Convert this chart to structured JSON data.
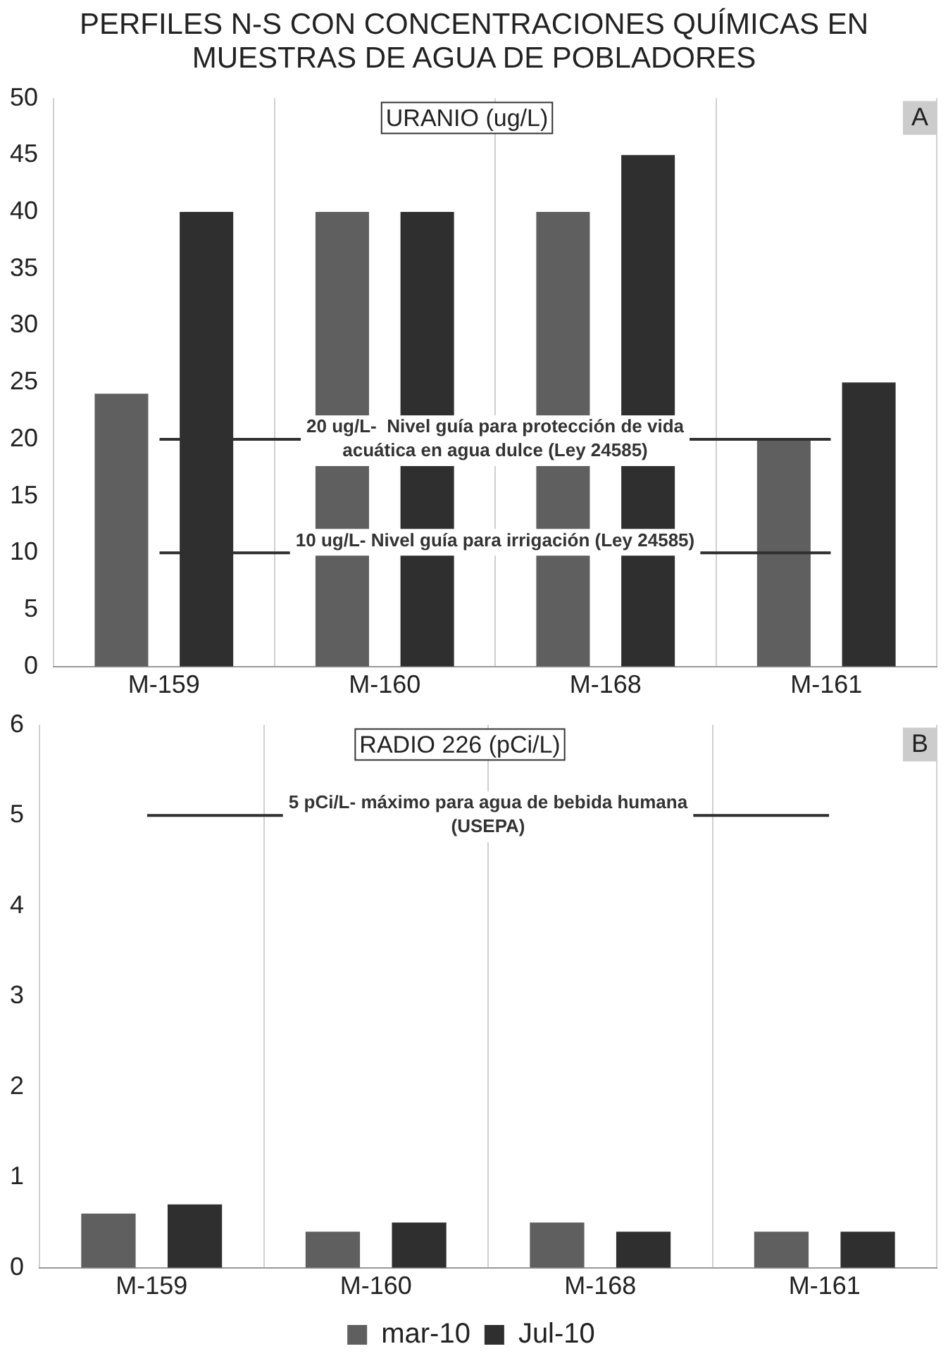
{
  "chart_data": [
    {
      "type": "bar",
      "title": "PERFILES N-S CON CONCENTRACIONES QUÍMICAS EN MUESTRAS DE AGUA DE POBLADORES",
      "subtitle": "URANIO (ug/L)",
      "annotations": [
        "A"
      ],
      "categories": [
        "M-159",
        "M-160",
        "M-168",
        "M-161"
      ],
      "series": [
        {
          "color": "#5f5f5f",
          "values": [
            24,
            40,
            40,
            20
          ]
        },
        {
          "color": "#2f2f2f",
          "values": [
            40,
            40,
            45,
            25
          ]
        }
      ],
      "ylim": [
        0,
        50
      ],
      "yticks": [
        0,
        5,
        10,
        15,
        20,
        25,
        30,
        35,
        40,
        45,
        50
      ],
      "grid": "x",
      "legend": false,
      "ref_lines": [
        {
          "axis": "y",
          "value": 20,
          "label": "20 ug/L-  Nivel guía para protección de vida acuática en agua dulce (Ley 24585)",
          "color": "#2f2f2f"
        },
        {
          "axis": "y",
          "value": 10,
          "label": "10 ug/L- Nivel guía para irrigación (Ley 24585)",
          "color": "#2f2f2f"
        }
      ]
    },
    {
      "type": "bar",
      "subtitle": "RADIO 226 (pCi/L)",
      "annotations": [
        "B"
      ],
      "categories": [
        "M-159",
        "M-160",
        "M-168",
        "M-161"
      ],
      "series": [
        {
          "name": "mar-10",
          "color": "#5f5f5f",
          "values": [
            0.6,
            0.4,
            0.5,
            0.4
          ]
        },
        {
          "name": "Jul-10",
          "color": "#2f2f2f",
          "values": [
            0.7,
            0.5,
            0.4,
            0.4
          ]
        }
      ],
      "ylim": [
        0,
        6
      ],
      "yticks": [
        0,
        1,
        2,
        3,
        4,
        5,
        6
      ],
      "grid": "x",
      "legend": "bottom",
      "ref_lines": [
        {
          "axis": "y",
          "value": 5,
          "label": "5 pCi/L- máximo para agua de bebida humana (USEPA)",
          "color": "#2f2f2f"
        }
      ]
    }
  ]
}
